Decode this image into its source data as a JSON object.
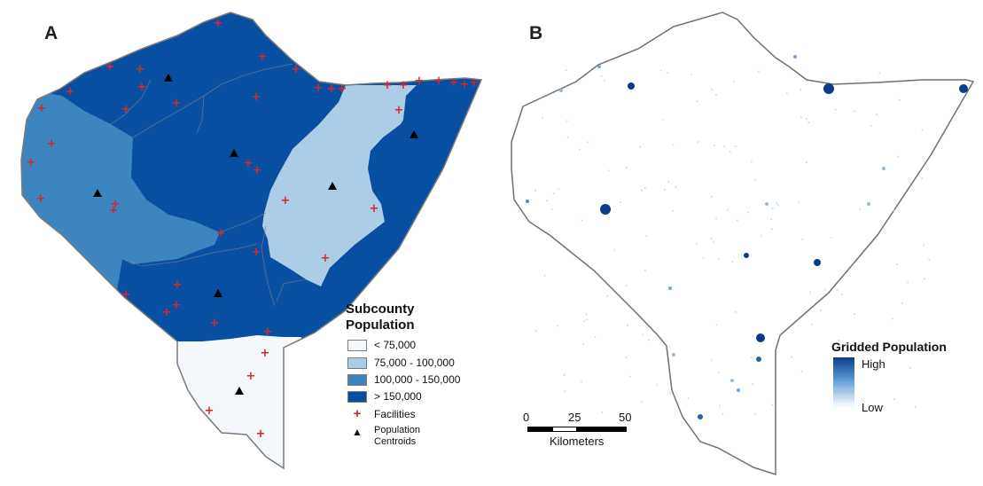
{
  "panel_a": {
    "label": "A",
    "legend": {
      "title_line1": "Subcounty",
      "title_line2": "Population",
      "classes": [
        {
          "label": "< 75,000",
          "color": "#f4f8fc"
        },
        {
          "label": "75,000 - 100,000",
          "color": "#abcde5"
        },
        {
          "label": "100,000 - 150,000",
          "color": "#3c85bf"
        },
        {
          "label": "> 150,000",
          "color": "#084fa1"
        }
      ],
      "facilities_label": "Facilities",
      "centroids_label_line1": "Population",
      "centroids_label_line2": "Centroids"
    },
    "colors": {
      "facility": "#d7262b",
      "centroid": "#000000",
      "boundary": "#7f7f7f"
    }
  },
  "panel_b": {
    "label": "B",
    "legend": {
      "title": "Gridded Population",
      "high": "High",
      "low": "Low",
      "ramp_high": "#0b3c89",
      "ramp_low": "#ffffff"
    },
    "scale_bar": {
      "ticks": [
        "0",
        "25",
        "50"
      ],
      "unit": "Kilometers"
    }
  }
}
